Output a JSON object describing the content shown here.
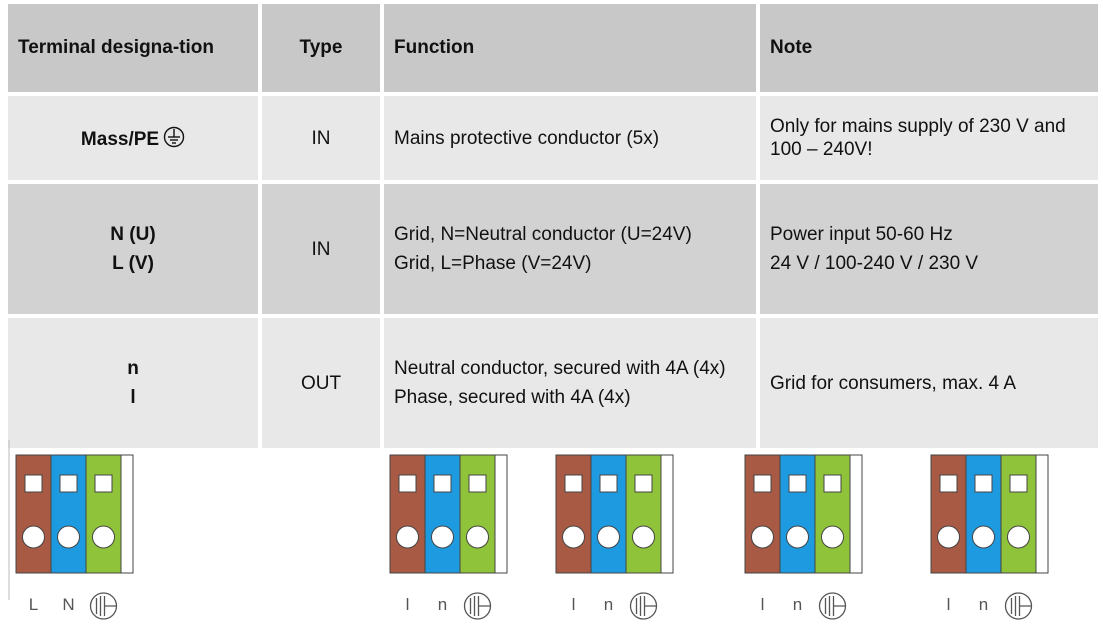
{
  "table": {
    "header": [
      "Terminal designa-tion",
      "Type",
      "Function",
      "Note"
    ],
    "rows": [
      [
        [
          "Mass/PE"
        ],
        [
          "IN"
        ],
        [
          "Mains protective conductor (5x)"
        ],
        [
          "Only for mains supply of 230 V and 100 – 240V!"
        ]
      ],
      [
        [
          "N (U)",
          "L (V)"
        ],
        [
          "IN"
        ],
        [
          "Grid, N=Neutral conductor (U=24V)",
          "Grid, L=Phase (V=24V)"
        ],
        [
          "Power input 50-60 Hz",
          "24 V / 100-240 V / 230 V"
        ]
      ],
      [
        [
          "n",
          "l"
        ],
        [
          "OUT"
        ],
        [
          "Neutral conductor, secured with 4A (4x)",
          "Phase, secured with 4A (4x)"
        ],
        [
          "Grid for consumers, max. 4 A"
        ]
      ]
    ]
  },
  "terminals": [
    {
      "labels": [
        "L",
        "N"
      ]
    },
    {
      "labels": [
        "l",
        "n"
      ]
    },
    {
      "labels": [
        "l",
        "n"
      ]
    },
    {
      "labels": [
        "l",
        "n"
      ]
    },
    {
      "labels": [
        "l",
        "n"
      ]
    }
  ]
}
